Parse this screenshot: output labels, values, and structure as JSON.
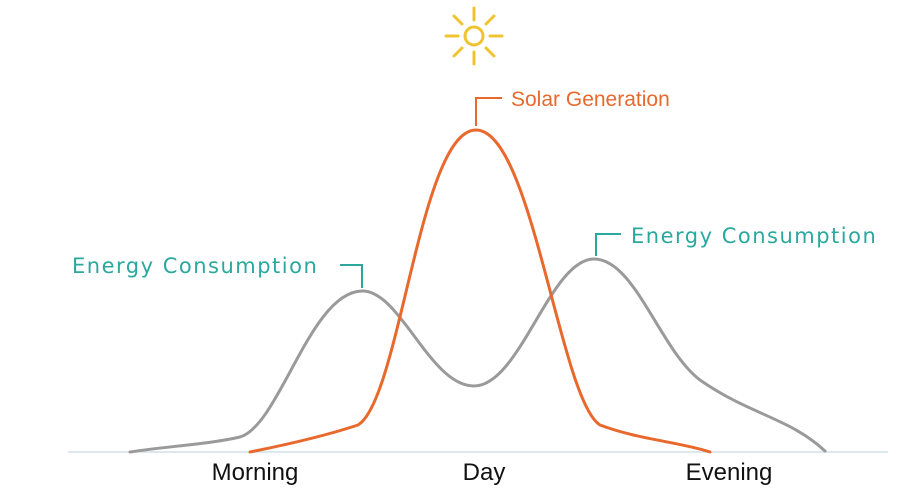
{
  "diagram": {
    "x_labels": [
      "Morning",
      "Day",
      "Evening"
    ],
    "annotations": {
      "solar": "Solar Generation",
      "energy_left": "Energy Consumption",
      "energy_right": "Energy Consumption"
    },
    "icon": "sun-icon",
    "colors": {
      "solar": "#e8692d",
      "consumption": "#9a9a9a",
      "annotation_energy": "#2aa89e",
      "sun": "#f0c330",
      "baseline": "#cfe0e6"
    }
  }
}
